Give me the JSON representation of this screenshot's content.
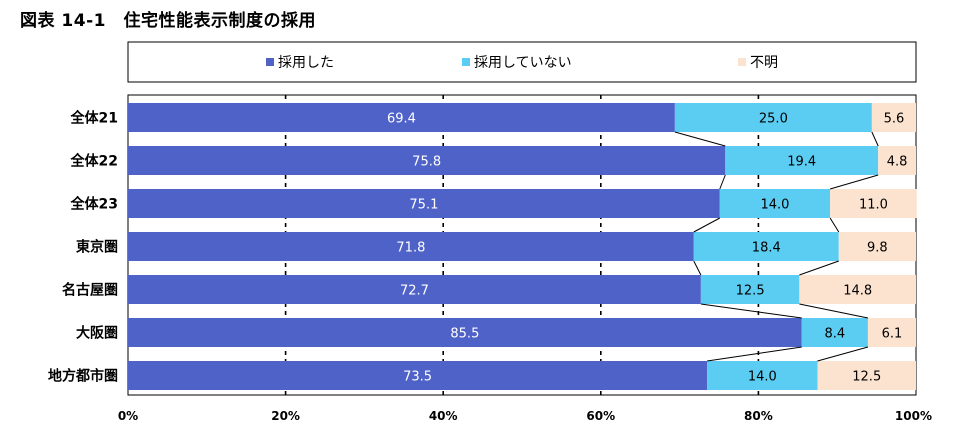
{
  "title": "図表 14-1　住宅性能表示制度の採用",
  "chart_data": {
    "type": "bar",
    "orientation": "horizontal",
    "stacked": "percent",
    "categories": [
      "全体21",
      "全体22",
      "全体23",
      "東京圏",
      "名古屋圏",
      "大阪圏",
      "地方都市圏"
    ],
    "series": [
      {
        "name": "採用した",
        "color": "#4F62C8",
        "values": [
          69.4,
          75.8,
          75.1,
          71.8,
          72.7,
          85.5,
          73.5
        ]
      },
      {
        "name": "採用していない",
        "color": "#5BCDF2",
        "values": [
          25.0,
          19.4,
          14.0,
          18.4,
          12.5,
          8.4,
          14.0
        ]
      },
      {
        "name": "不明",
        "color": "#FCE3CF",
        "values": [
          5.6,
          4.8,
          11.0,
          9.8,
          14.8,
          6.1,
          12.5
        ]
      }
    ],
    "xlim": [
      0,
      100
    ],
    "x_ticks": [
      "0%",
      "20%",
      "40%",
      "60%",
      "80%",
      "100%"
    ],
    "grid": "vertical dashed",
    "legend_position": "top",
    "series_connector_lines": true
  }
}
